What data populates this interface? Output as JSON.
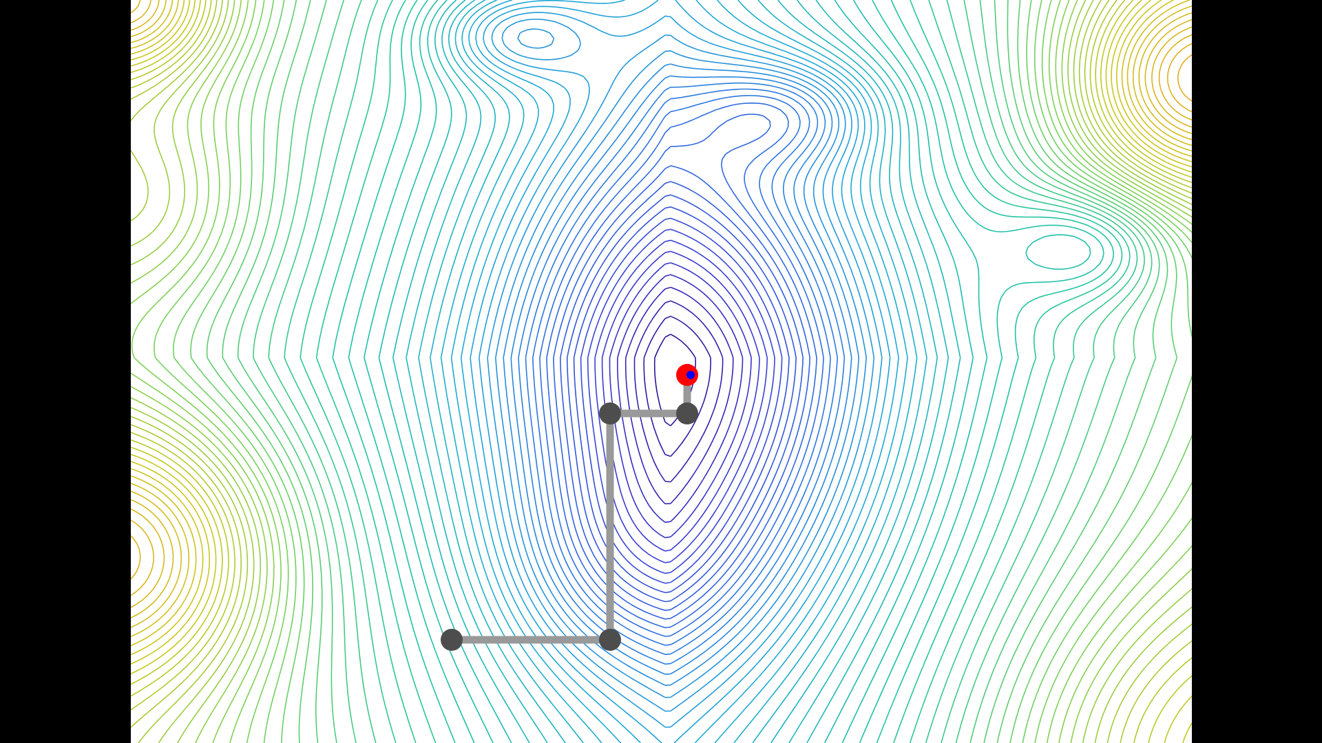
{
  "scene": {
    "background": "#ffffff",
    "letterbox_color": "#000000",
    "contour_colormap": [
      "#2c0a8a",
      "#3a3ad0",
      "#2f6fe0",
      "#1ea7d8",
      "#20c4a0",
      "#78d15a",
      "#c9c81c",
      "#e4a91c"
    ]
  },
  "path": {
    "line_color": "#999999",
    "node_color": "#4d4d4d",
    "nodes": [
      {
        "id": "start"
      },
      {
        "id": "step-1"
      },
      {
        "id": "step-2"
      },
      {
        "id": "step-3"
      }
    ]
  },
  "target": {
    "outer_color": "#ff0000",
    "inner_color": "#0000ff"
  }
}
